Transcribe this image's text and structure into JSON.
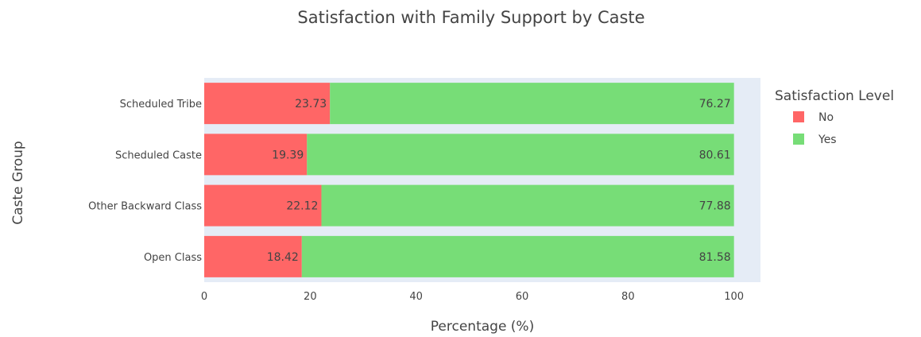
{
  "chart_data": {
    "type": "bar",
    "orientation": "horizontal",
    "stacked": true,
    "title": "Satisfaction with Family Support by Caste",
    "xlabel": "Percentage (%)",
    "ylabel": "Caste Group",
    "xlim": [
      0,
      105
    ],
    "xticks": [
      0,
      20,
      40,
      60,
      80,
      100
    ],
    "categories": [
      "Scheduled Tribe",
      "Scheduled Caste",
      "Other Backward Class",
      "Open Class"
    ],
    "series": [
      {
        "name": "No",
        "color": "#ff6666",
        "values": [
          23.73,
          19.39,
          22.12,
          18.42
        ],
        "labels": [
          "23.73",
          "19.39",
          "22.12",
          "18.42"
        ]
      },
      {
        "name": "Yes",
        "color": "#77dd77",
        "values": [
          76.27,
          80.61,
          77.88,
          81.58
        ],
        "labels": [
          "76.27",
          "80.61",
          "77.88",
          "81.58"
        ]
      }
    ],
    "legend": {
      "title": "Satisfaction Level",
      "position": "right"
    },
    "plot_background": "#e5ecf6",
    "grid": false
  }
}
